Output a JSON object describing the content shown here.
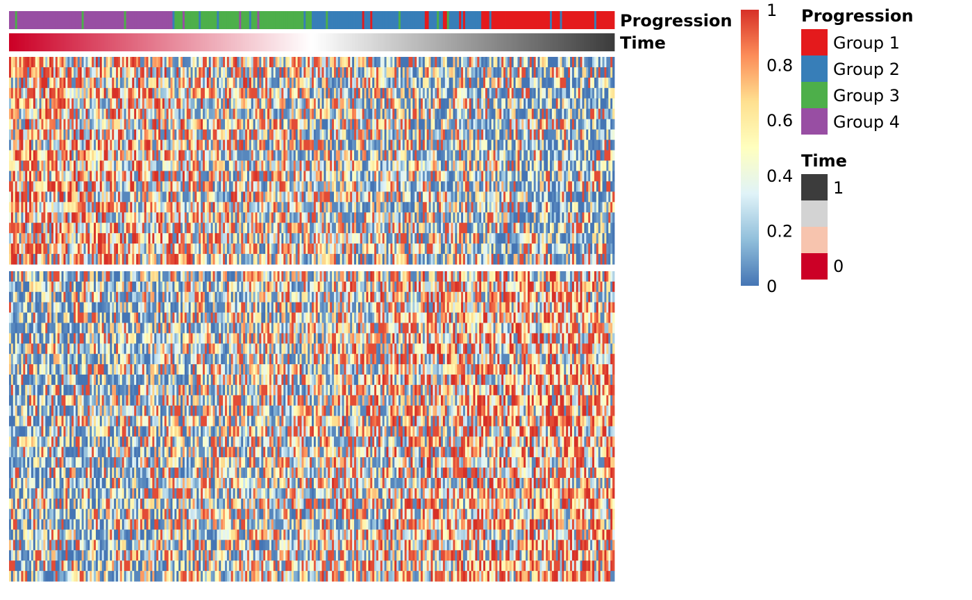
{
  "chart_data": {
    "type": "heatmap",
    "annotations": {
      "progression": {
        "label": "Progression",
        "legend_title": "Progression",
        "groups": [
          {
            "name": "Group 1",
            "color": "#E41A1C"
          },
          {
            "name": "Group 2",
            "color": "#377EB8"
          },
          {
            "name": "Group 3",
            "color": "#4DAF4A"
          },
          {
            "name": "Group 4",
            "color": "#984EA3"
          }
        ],
        "column_group_order": [
          "Group 4",
          "Group 3",
          "Group 2",
          "Group 1"
        ]
      },
      "time": {
        "label": "Time",
        "legend_title": "Time",
        "range": [
          0,
          1
        ],
        "legend_ticks": [
          "1",
          "0"
        ],
        "legend_colors": [
          "#3C3C3C",
          "#D3D3D3",
          "#F7C4AE",
          "#CC0026"
        ],
        "gradient": [
          "#CC0026",
          "#FFFFFF",
          "#3C3C3C"
        ]
      }
    },
    "color_scale": {
      "range": [
        0,
        1
      ],
      "ticks": [
        "1",
        "0.8",
        "0.6",
        "0.4",
        "0.2",
        "0"
      ],
      "colors": [
        "#4575B4",
        "#91BFDB",
        "#E0F3F8",
        "#FFFFBF",
        "#FEE090",
        "#FC8D59",
        "#D73027"
      ]
    },
    "row_splits": 2,
    "columns": 300,
    "rows_per_split": [
      20,
      30
    ],
    "trend": {
      "top_split": "values decrease along time",
      "bottom_split": "values increase along time"
    }
  }
}
